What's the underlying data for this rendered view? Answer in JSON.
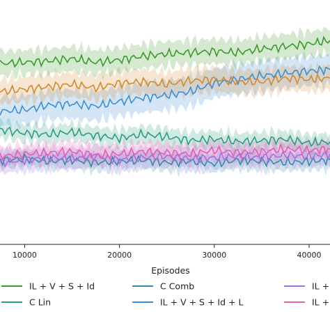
{
  "chart_data": {
    "type": "line",
    "xlabel": "Episodes",
    "ylabel": "",
    "title": "",
    "xlim": [
      7400,
      42200
    ],
    "ylim": [
      0,
      1
    ],
    "x_ticks": [
      10000,
      20000,
      30000,
      40000
    ],
    "x_tick_labels": [
      "10000",
      "20000",
      "30000",
      "40000"
    ],
    "grid": false,
    "legend_position": "bottom",
    "x": [
      7400,
      10000,
      12500,
      15000,
      17500,
      20000,
      22500,
      25000,
      27500,
      30000,
      32500,
      35000,
      37500,
      40000,
      42200
    ],
    "series": [
      {
        "name": "IL + V + S + Id",
        "color": "#3a9a2a",
        "band": 0.05,
        "values": [
          0.74,
          0.745,
          0.75,
          0.76,
          0.745,
          0.755,
          0.77,
          0.78,
          0.785,
          0.79,
          0.785,
          0.8,
          0.81,
          0.82,
          0.835
        ]
      },
      {
        "name": "C Lin",
        "color": "#2a9d7f",
        "band": 0.035,
        "values": [
          0.47,
          0.455,
          0.45,
          0.46,
          0.445,
          0.435,
          0.45,
          0.44,
          0.425,
          0.43,
          0.42,
          0.425,
          0.43,
          0.415,
          0.42
        ]
      },
      {
        "name": "C Comb",
        "color": "#2f8fa8",
        "band": 0.035,
        "values": [
          0.345,
          0.35,
          0.34,
          0.345,
          0.335,
          0.34,
          0.345,
          0.335,
          0.34,
          0.33,
          0.345,
          0.34,
          0.335,
          0.34,
          0.345
        ]
      },
      {
        "name": "IL + V + S + Id + L",
        "color": "#3a8fd6",
        "band": 0.06,
        "values": [
          0.545,
          0.55,
          0.57,
          0.575,
          0.565,
          0.585,
          0.6,
          0.61,
          0.625,
          0.66,
          0.675,
          0.69,
          0.7,
          0.71,
          0.715
        ]
      },
      {
        "name": "",
        "color": "#d18a2e",
        "band": 0.05,
        "values": [
          0.625,
          0.635,
          0.645,
          0.655,
          0.64,
          0.66,
          0.665,
          0.655,
          0.67,
          0.675,
          0.665,
          0.665,
          0.68,
          0.675,
          0.68
        ]
      },
      {
        "name": "IL +",
        "color": "#a46fe0",
        "band": 0.045,
        "values": [
          0.335,
          0.345,
          0.355,
          0.35,
          0.36,
          0.345,
          0.355,
          0.36,
          0.35,
          0.355,
          0.36,
          0.355,
          0.365,
          0.36,
          0.37
        ]
      },
      {
        "name": "IL +",
        "color": "#e45fb0",
        "band": 0.04,
        "values": [
          0.36,
          0.37,
          0.375,
          0.38,
          0.365,
          0.37,
          0.38,
          0.375,
          0.37,
          0.385,
          0.375,
          0.38,
          0.39,
          0.385,
          0.39
        ]
      }
    ],
    "legend": [
      {
        "label": "IL + V + S + Id",
        "color": "#3a9a2a"
      },
      {
        "label": "C Comb",
        "color": "#2f8fa8"
      },
      {
        "label": "IL +",
        "color": "#a46fe0"
      },
      {
        "label": "C Lin",
        "color": "#2a9d7f"
      },
      {
        "label": "IL + V + S + Id + L",
        "color": "#3a8fd6"
      },
      {
        "label": "IL +",
        "color": "#e45fb0"
      }
    ]
  }
}
